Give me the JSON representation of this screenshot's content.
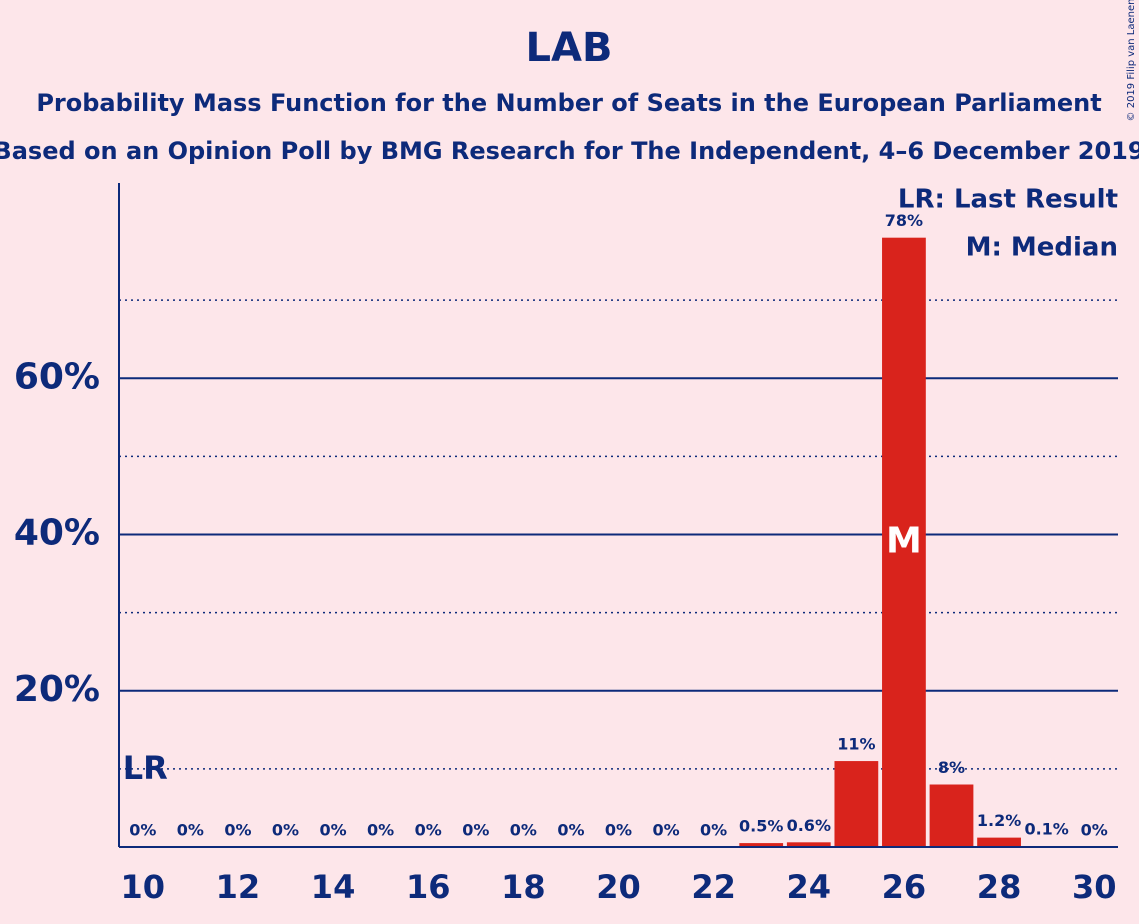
{
  "chart_data": {
    "type": "bar",
    "title": "LAB",
    "subtitle": "Probability Mass Function for the Number of Seats in the European Parliament",
    "subtitle2": "Based on an Opinion Poll by BMG Research for The Independent, 4–6 December 2019",
    "copyright": "© 2019 Filip van Laenen",
    "x": [
      10,
      11,
      12,
      13,
      14,
      15,
      16,
      17,
      18,
      19,
      20,
      21,
      22,
      23,
      24,
      25,
      26,
      27,
      28,
      29,
      30
    ],
    "xlim": [
      9.5,
      30.5
    ],
    "xticks": [
      10,
      12,
      14,
      16,
      18,
      20,
      22,
      24,
      26,
      28,
      30
    ],
    "series": [
      {
        "color": "#d9231c",
        "values": [
          0,
          0,
          0,
          0,
          0,
          0,
          0,
          0,
          0,
          0,
          0,
          0,
          0,
          0.5,
          0.6,
          11,
          78,
          8,
          1.2,
          0.1,
          0
        ],
        "value_labels": [
          "0%",
          "0%",
          "0%",
          "0%",
          "0%",
          "0%",
          "0%",
          "0%",
          "0%",
          "0%",
          "0%",
          "0%",
          "0%",
          "0.5%",
          "0.6%",
          "11%",
          "78%",
          "8%",
          "1.2%",
          "0.1%",
          "0%"
        ]
      }
    ],
    "ylim": [
      0,
      85
    ],
    "yticks": [
      {
        "value": 20,
        "label": "20%"
      },
      {
        "value": 40,
        "label": "40%"
      },
      {
        "value": 60,
        "label": "60%"
      }
    ],
    "minor_gridlines": [
      10,
      30,
      50,
      70
    ],
    "grid": true,
    "last_result": {
      "x": 10,
      "label": "LR"
    },
    "median": {
      "x": 26,
      "label": "M"
    },
    "legend": [
      "LR: Last Result",
      "M: Median"
    ]
  }
}
